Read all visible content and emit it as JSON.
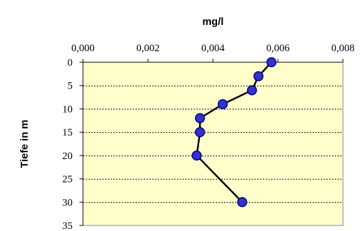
{
  "chart_data": {
    "type": "line",
    "title": "",
    "xlabel": "mg/l",
    "ylabel": "Tiefe in m",
    "x_axis_position": "top",
    "y_axis_inverted": true,
    "xlim": [
      0,
      0.008
    ],
    "ylim": [
      0,
      35
    ],
    "x_ticks": [
      "0,000",
      "0,002",
      "0,004",
      "0,006",
      "0,008"
    ],
    "y_ticks": [
      "0",
      "5",
      "10",
      "15",
      "20",
      "25",
      "30",
      "35"
    ],
    "grid": "horizontal dashed",
    "legend": "none",
    "colors": {
      "plot_background": "#ffffcc",
      "marker_fill": "#3333cc",
      "marker_stroke": "#000080",
      "line": "#000000",
      "grid": "#000000"
    },
    "series": [
      {
        "points": [
          {
            "x": 0.0058,
            "y": 0
          },
          {
            "x": 0.0054,
            "y": 3
          },
          {
            "x": 0.0052,
            "y": 6
          },
          {
            "x": 0.0043,
            "y": 9
          },
          {
            "x": 0.0036,
            "y": 12
          },
          {
            "x": 0.0036,
            "y": 15
          },
          {
            "x": 0.0035,
            "y": 20
          },
          {
            "x": 0.0049,
            "y": 30
          }
        ]
      }
    ]
  }
}
